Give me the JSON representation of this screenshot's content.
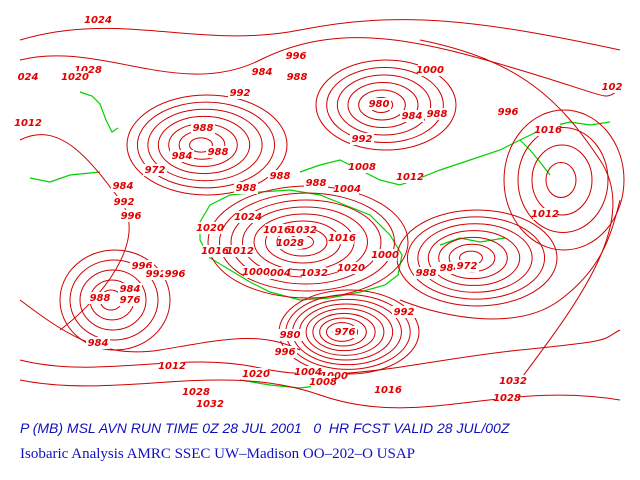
{
  "isobar_labels": [
    1024,
    1028,
    1020,
    "024",
    1012,
    996,
    984,
    988,
    992,
    1000,
    980,
    984,
    988,
    996,
    992,
    1016,
    "102",
    988,
    984,
    988,
    972,
    984,
    992,
    996,
    988,
    988,
    988,
    1004,
    1008,
    1012,
    1012,
    1024,
    1020,
    1016,
    1032,
    1028,
    1016,
    1016,
    1012,
    1004,
    1000,
    1032,
    1020,
    1000,
    988,
    984,
    972,
    996,
    992,
    996,
    988,
    984,
    976,
    992,
    984,
    996,
    980,
    976,
    1004,
    1000,
    1008,
    1016,
    1012,
    1020,
    1028,
    1032,
    1032,
    1028
  ],
  "caption": {
    "line1": "P (MB) MSL AVN RUN TIME 0Z 28 JUL 2001   0  HR FCST VALID 28 JUL/00Z",
    "line2": "Isobaric Analysis AMRC SSEC UW–Madison OO–202–O USAP"
  }
}
